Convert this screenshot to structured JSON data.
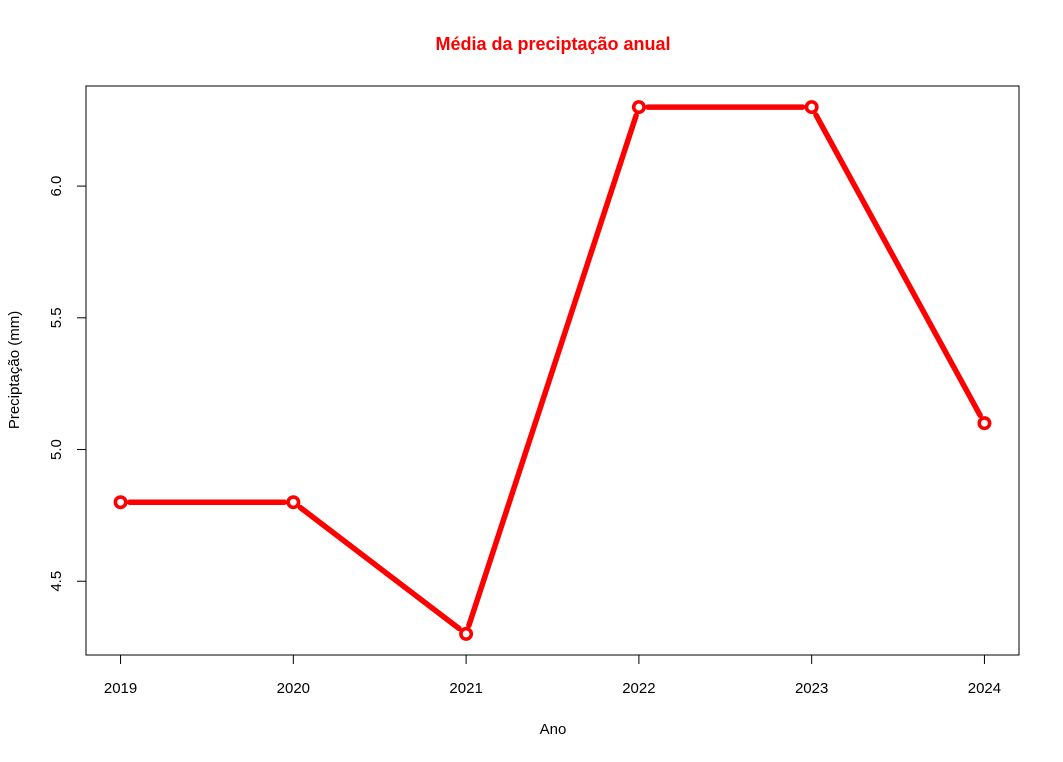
{
  "chart_data": {
    "type": "line",
    "title": "Média da preciptação anual",
    "xlabel": "Ano",
    "ylabel": "Preciptação (mm)",
    "x": [
      2019,
      2020,
      2021,
      2022,
      2023,
      2024
    ],
    "x_tick_labels": [
      "2019",
      "2020",
      "2021",
      "2022",
      "2023",
      "2024"
    ],
    "y_ticks": [
      4.5,
      5.0,
      5.5,
      6.0
    ],
    "y_tick_labels": [
      "4.5",
      "5.0",
      "5.5",
      "6.0"
    ],
    "series": [
      {
        "values": [
          4.8,
          4.8,
          4.3,
          6.3,
          6.3,
          5.1
        ]
      }
    ],
    "xlim": [
      2018.8,
      2024.2
    ],
    "ylim": [
      4.22,
      6.38
    ],
    "grid": false,
    "colors": {
      "series": "#ff0000",
      "title": "#ff0000",
      "axis": "#000000",
      "marker_fill": "#ffffff"
    }
  }
}
